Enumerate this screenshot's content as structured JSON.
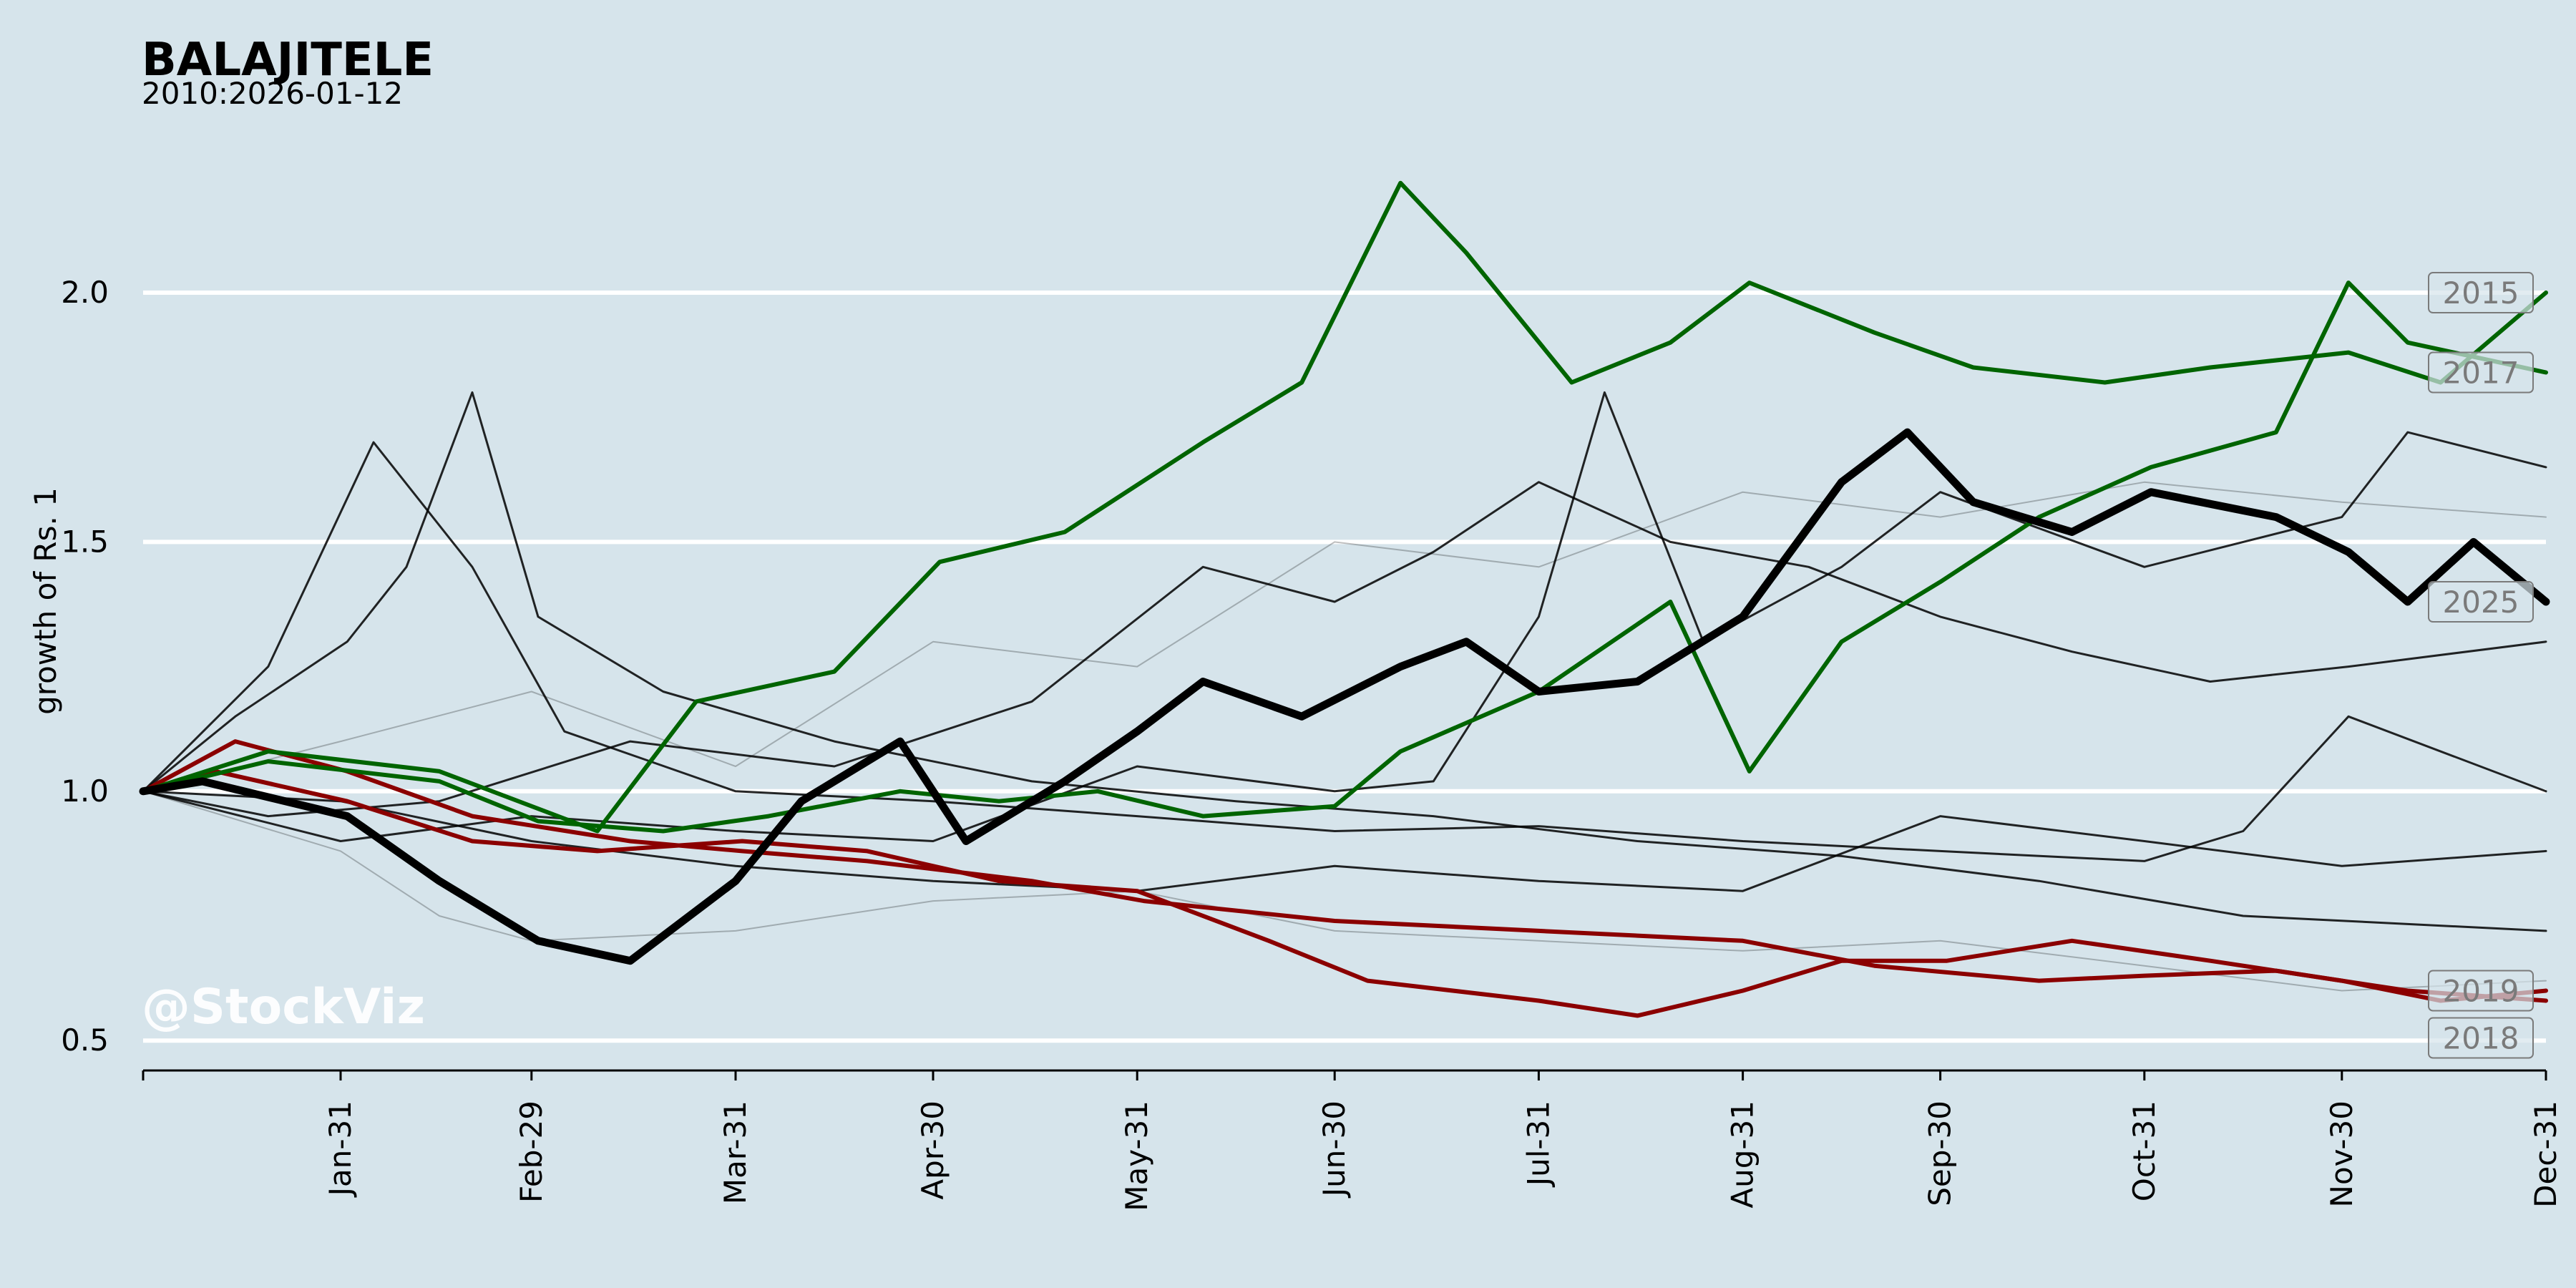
{
  "chart_data": {
    "type": "line",
    "title": "BALAJITELE",
    "subtitle": "2010:2026-01-12",
    "ylabel": "growth of Rs. 1",
    "xlabel": "",
    "watermark": "@StockViz",
    "ylim": [
      0.44,
      2.3
    ],
    "y_ticks": [
      0.5,
      1.0,
      1.5,
      2.0
    ],
    "y_tick_labels": [
      "0.5",
      "1.0",
      "1.5",
      "2.0"
    ],
    "x_domain": [
      "01-01",
      "12-31"
    ],
    "x_ticks": [
      {
        "label": "Jan-31",
        "date": "01-31"
      },
      {
        "label": "Feb-29",
        "date": "02-29"
      },
      {
        "label": "Mar-31",
        "date": "03-31"
      },
      {
        "label": "Apr-30",
        "date": "04-30"
      },
      {
        "label": "May-31",
        "date": "05-31"
      },
      {
        "label": "Jun-30",
        "date": "06-30"
      },
      {
        "label": "Jul-31",
        "date": "07-31"
      },
      {
        "label": "Aug-31",
        "date": "08-31"
      },
      {
        "label": "Sep-30",
        "date": "09-30"
      },
      {
        "label": "Oct-31",
        "date": "10-31"
      },
      {
        "label": "Nov-30",
        "date": "11-30"
      },
      {
        "label": "Dec-31",
        "date": "12-31"
      }
    ],
    "grid": "horizontal",
    "colors": {
      "background": "#d6e4eb",
      "grid": "#ffffff",
      "current_year": "#000000",
      "best_years": "#006400",
      "worst_years": "#8b0000",
      "other_years": "#000000",
      "label_box": "#7a7a7a"
    },
    "series": [
      {
        "name": "2015",
        "role": "best",
        "points": [
          [
            "01-01",
            1.0
          ],
          [
            "01-20",
            1.08
          ],
          [
            "02-15",
            1.04
          ],
          [
            "03-10",
            0.92
          ],
          [
            "03-25",
            1.18
          ],
          [
            "04-15",
            1.24
          ],
          [
            "05-01",
            1.46
          ],
          [
            "05-20",
            1.52
          ],
          [
            "06-10",
            1.7
          ],
          [
            "06-25",
            1.82
          ],
          [
            "07-10",
            2.22
          ],
          [
            "07-20",
            2.08
          ],
          [
            "08-05",
            1.82
          ],
          [
            "08-20",
            1.9
          ],
          [
            "09-01",
            2.02
          ],
          [
            "09-20",
            1.92
          ],
          [
            "10-05",
            1.85
          ],
          [
            "10-25",
            1.82
          ],
          [
            "11-10",
            1.85
          ],
          [
            "12-01",
            1.88
          ],
          [
            "12-15",
            1.82
          ],
          [
            "12-31",
            2.0
          ]
        ],
        "annotate": true
      },
      {
        "name": "2017",
        "role": "best",
        "points": [
          [
            "01-01",
            1.0
          ],
          [
            "01-20",
            1.06
          ],
          [
            "02-15",
            1.02
          ],
          [
            "03-01",
            0.94
          ],
          [
            "03-20",
            0.92
          ],
          [
            "04-05",
            0.95
          ],
          [
            "04-25",
            1.0
          ],
          [
            "05-10",
            0.98
          ],
          [
            "05-25",
            1.0
          ],
          [
            "06-10",
            0.95
          ],
          [
            "06-30",
            0.97
          ],
          [
            "07-10",
            1.08
          ],
          [
            "07-31",
            1.2
          ],
          [
            "08-20",
            1.38
          ],
          [
            "09-01",
            1.04
          ],
          [
            "09-15",
            1.3
          ],
          [
            "09-30",
            1.42
          ],
          [
            "10-15",
            1.55
          ],
          [
            "11-01",
            1.65
          ],
          [
            "11-20",
            1.72
          ],
          [
            "12-01",
            2.02
          ],
          [
            "12-10",
            1.9
          ],
          [
            "12-31",
            1.84
          ]
        ],
        "annotate": true
      },
      {
        "name": "2018",
        "role": "worst",
        "points": [
          [
            "01-01",
            1.0
          ],
          [
            "01-15",
            1.1
          ],
          [
            "02-01",
            1.04
          ],
          [
            "02-20",
            0.95
          ],
          [
            "03-15",
            0.9
          ],
          [
            "04-01",
            0.88
          ],
          [
            "04-20",
            0.86
          ],
          [
            "05-15",
            0.82
          ],
          [
            "06-01",
            0.78
          ],
          [
            "06-30",
            0.74
          ],
          [
            "07-31",
            0.72
          ],
          [
            "08-31",
            0.7
          ],
          [
            "09-20",
            0.65
          ],
          [
            "10-15",
            0.62
          ],
          [
            "10-31",
            0.63
          ],
          [
            "11-20",
            0.64
          ],
          [
            "12-10",
            0.6
          ],
          [
            "12-31",
            0.58
          ]
        ],
        "annotate": true
      },
      {
        "name": "2019",
        "role": "worst",
        "points": [
          [
            "01-01",
            1.0
          ],
          [
            "01-12",
            1.04
          ],
          [
            "02-01",
            0.98
          ],
          [
            "02-20",
            0.9
          ],
          [
            "03-10",
            0.88
          ],
          [
            "04-01",
            0.9
          ],
          [
            "04-20",
            0.88
          ],
          [
            "05-10",
            0.82
          ],
          [
            "05-31",
            0.8
          ],
          [
            "06-20",
            0.7
          ],
          [
            "07-05",
            0.62
          ],
          [
            "07-31",
            0.58
          ],
          [
            "08-15",
            0.55
          ],
          [
            "08-31",
            0.6
          ],
          [
            "09-15",
            0.66
          ],
          [
            "10-01",
            0.66
          ],
          [
            "10-20",
            0.7
          ],
          [
            "11-10",
            0.66
          ],
          [
            "11-30",
            0.62
          ],
          [
            "12-15",
            0.58
          ],
          [
            "12-31",
            0.6
          ]
        ],
        "annotate": true
      },
      {
        "name": "2025",
        "role": "current",
        "points": [
          [
            "01-01",
            1.0
          ],
          [
            "01-10",
            1.02
          ],
          [
            "02-01",
            0.95
          ],
          [
            "02-15",
            0.82
          ],
          [
            "03-01",
            0.7
          ],
          [
            "03-15",
            0.66
          ],
          [
            "03-31",
            0.82
          ],
          [
            "04-10",
            0.98
          ],
          [
            "04-25",
            1.1
          ],
          [
            "05-05",
            0.9
          ],
          [
            "05-20",
            1.02
          ],
          [
            "05-31",
            1.12
          ],
          [
            "06-10",
            1.22
          ],
          [
            "06-25",
            1.15
          ],
          [
            "07-10",
            1.25
          ],
          [
            "07-20",
            1.3
          ],
          [
            "07-31",
            1.2
          ],
          [
            "08-15",
            1.22
          ],
          [
            "08-31",
            1.35
          ],
          [
            "09-15",
            1.62
          ],
          [
            "09-25",
            1.72
          ],
          [
            "10-05",
            1.58
          ],
          [
            "10-20",
            1.52
          ],
          [
            "11-01",
            1.6
          ],
          [
            "11-20",
            1.55
          ],
          [
            "12-01",
            1.48
          ],
          [
            "12-10",
            1.38
          ],
          [
            "12-20",
            1.5
          ],
          [
            "12-31",
            1.38
          ]
        ],
        "annotate": true
      },
      {
        "name": "",
        "role": "other",
        "points": [
          [
            "01-01",
            1.0
          ],
          [
            "01-15",
            1.15
          ],
          [
            "02-01",
            1.3
          ],
          [
            "02-10",
            1.45
          ],
          [
            "02-20",
            1.8
          ],
          [
            "03-01",
            1.35
          ],
          [
            "03-20",
            1.2
          ],
          [
            "04-15",
            1.1
          ],
          [
            "05-15",
            1.02
          ],
          [
            "06-15",
            0.98
          ],
          [
            "07-15",
            0.95
          ],
          [
            "08-15",
            0.9
          ],
          [
            "09-15",
            0.87
          ],
          [
            "10-15",
            0.82
          ],
          [
            "11-15",
            0.75
          ],
          [
            "12-31",
            0.72
          ]
        ]
      },
      {
        "name": "",
        "role": "other",
        "points": [
          [
            "01-01",
            1.0
          ],
          [
            "01-20",
            1.25
          ],
          [
            "02-05",
            1.7
          ],
          [
            "02-20",
            1.45
          ],
          [
            "03-05",
            1.12
          ],
          [
            "03-31",
            1.0
          ],
          [
            "04-30",
            0.98
          ],
          [
            "05-31",
            0.95
          ],
          [
            "06-30",
            0.92
          ],
          [
            "07-31",
            0.93
          ],
          [
            "08-31",
            0.9
          ],
          [
            "09-30",
            0.88
          ],
          [
            "10-31",
            0.86
          ],
          [
            "11-15",
            0.92
          ],
          [
            "12-01",
            1.15
          ],
          [
            "12-31",
            1.0
          ]
        ]
      },
      {
        "name": "",
        "role": "other",
        "points": [
          [
            "01-01",
            1.0
          ],
          [
            "01-20",
            0.95
          ],
          [
            "02-15",
            0.98
          ],
          [
            "03-15",
            1.1
          ],
          [
            "04-15",
            1.05
          ],
          [
            "05-15",
            1.18
          ],
          [
            "06-10",
            1.45
          ],
          [
            "06-30",
            1.38
          ],
          [
            "07-15",
            1.48
          ],
          [
            "07-31",
            1.62
          ],
          [
            "08-20",
            1.5
          ],
          [
            "09-10",
            1.45
          ],
          [
            "09-30",
            1.35
          ],
          [
            "10-20",
            1.28
          ],
          [
            "11-10",
            1.22
          ],
          [
            "12-01",
            1.25
          ],
          [
            "12-31",
            1.3
          ]
        ]
      },
      {
        "name": "",
        "role": "other",
        "points": [
          [
            "01-01",
            1.0
          ],
          [
            "01-31",
            0.9
          ],
          [
            "02-29",
            0.95
          ],
          [
            "03-31",
            0.92
          ],
          [
            "04-30",
            0.9
          ],
          [
            "05-31",
            1.05
          ],
          [
            "06-30",
            1.0
          ],
          [
            "07-15",
            1.02
          ],
          [
            "07-31",
            1.35
          ],
          [
            "08-10",
            1.8
          ],
          [
            "08-25",
            1.3
          ],
          [
            "09-15",
            1.45
          ],
          [
            "09-30",
            1.6
          ],
          [
            "10-31",
            1.45
          ],
          [
            "11-30",
            1.55
          ],
          [
            "12-10",
            1.72
          ],
          [
            "12-31",
            1.65
          ]
        ]
      },
      {
        "name": "",
        "role": "other",
        "points": [
          [
            "01-01",
            1.0
          ],
          [
            "01-31",
            0.98
          ],
          [
            "02-29",
            0.9
          ],
          [
            "03-31",
            0.85
          ],
          [
            "04-30",
            0.82
          ],
          [
            "05-31",
            0.8
          ],
          [
            "06-30",
            0.85
          ],
          [
            "07-31",
            0.82
          ],
          [
            "08-31",
            0.8
          ],
          [
            "09-30",
            0.95
          ],
          [
            "10-31",
            0.9
          ],
          [
            "11-30",
            0.85
          ],
          [
            "12-31",
            0.88
          ]
        ]
      },
      {
        "name": "",
        "role": "faint",
        "points": [
          [
            "01-01",
            1.0
          ],
          [
            "01-31",
            1.1
          ],
          [
            "02-29",
            1.2
          ],
          [
            "03-31",
            1.05
          ],
          [
            "04-30",
            1.3
          ],
          [
            "05-31",
            1.25
          ],
          [
            "06-30",
            1.5
          ],
          [
            "07-31",
            1.45
          ],
          [
            "08-31",
            1.6
          ],
          [
            "09-30",
            1.55
          ],
          [
            "10-31",
            1.62
          ],
          [
            "11-30",
            1.58
          ],
          [
            "12-31",
            1.55
          ]
        ]
      },
      {
        "name": "",
        "role": "faint",
        "points": [
          [
            "01-01",
            1.0
          ],
          [
            "01-31",
            0.88
          ],
          [
            "02-15",
            0.75
          ],
          [
            "02-29",
            0.7
          ],
          [
            "03-31",
            0.72
          ],
          [
            "04-30",
            0.78
          ],
          [
            "05-31",
            0.8
          ],
          [
            "06-30",
            0.72
          ],
          [
            "07-31",
            0.7
          ],
          [
            "08-31",
            0.68
          ],
          [
            "09-30",
            0.7
          ],
          [
            "10-31",
            0.65
          ],
          [
            "11-30",
            0.6
          ],
          [
            "12-31",
            0.62
          ]
        ]
      }
    ]
  }
}
